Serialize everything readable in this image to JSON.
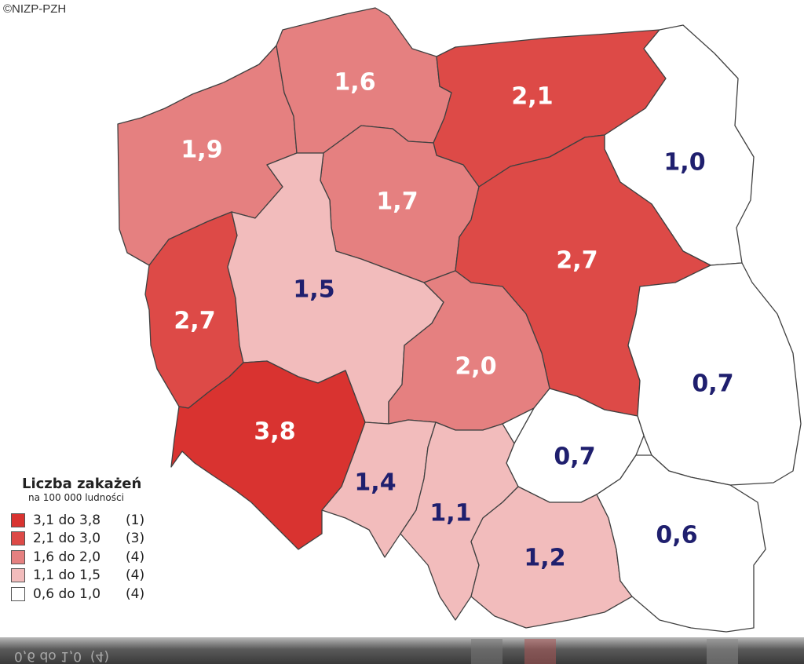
{
  "copyright": "©NIZP-PZH",
  "colors": {
    "bin_5": "#d93330",
    "bin_4": "#dd4a47",
    "bin_3": "#e58080",
    "bin_2": "#f2bcbc",
    "bin_1": "#ffffff",
    "label_light": "#ffffff",
    "label_dark": "#1f1f6e",
    "border": "#404040"
  },
  "regions": [
    {
      "id": "zachodniopomorskie",
      "value": "1,9",
      "bin": "bin_3"
    },
    {
      "id": "pomorskie",
      "value": "1,6",
      "bin": "bin_3"
    },
    {
      "id": "warminsko-mazurskie",
      "value": "2,1",
      "bin": "bin_4"
    },
    {
      "id": "podlaskie",
      "value": "1,0",
      "bin": "bin_1"
    },
    {
      "id": "kujawsko-pomorskie",
      "value": "1,7",
      "bin": "bin_3"
    },
    {
      "id": "lubuskie",
      "value": "2,7",
      "bin": "bin_4"
    },
    {
      "id": "wielkopolskie",
      "value": "1,5",
      "bin": "bin_2"
    },
    {
      "id": "mazowieckie",
      "value": "2,7",
      "bin": "bin_4"
    },
    {
      "id": "lodzkie",
      "value": "2,0",
      "bin": "bin_3"
    },
    {
      "id": "lubelskie",
      "value": "0,7",
      "bin": "bin_1"
    },
    {
      "id": "dolnoslaskie",
      "value": "3,8",
      "bin": "bin_5"
    },
    {
      "id": "opolskie",
      "value": "1,4",
      "bin": "bin_2"
    },
    {
      "id": "swietokrzyskie",
      "value": "0,7",
      "bin": "bin_1"
    },
    {
      "id": "slaskie",
      "value": "1,1",
      "bin": "bin_2"
    },
    {
      "id": "malopolskie",
      "value": "1,2",
      "bin": "bin_2"
    },
    {
      "id": "podkarpackie",
      "value": "0,6",
      "bin": "bin_1"
    }
  ],
  "legend": {
    "title": "Liczba zakażeń",
    "subtitle": "na 100 000 ludności",
    "items": [
      {
        "range": "3,1 do 3,8",
        "count": "(1)",
        "bin": "bin_5"
      },
      {
        "range": "2,1 do 3,0",
        "count": "(3)",
        "bin": "bin_4"
      },
      {
        "range": "1,6 do 2,0",
        "count": "(4)",
        "bin": "bin_3"
      },
      {
        "range": "1,1 do 1,5",
        "count": "(4)",
        "bin": "bin_2"
      },
      {
        "range": "0,6 do 1,0",
        "count": "(4)",
        "bin": "bin_1"
      }
    ]
  },
  "reflection_text": "0,6 do 1,0  (4)"
}
